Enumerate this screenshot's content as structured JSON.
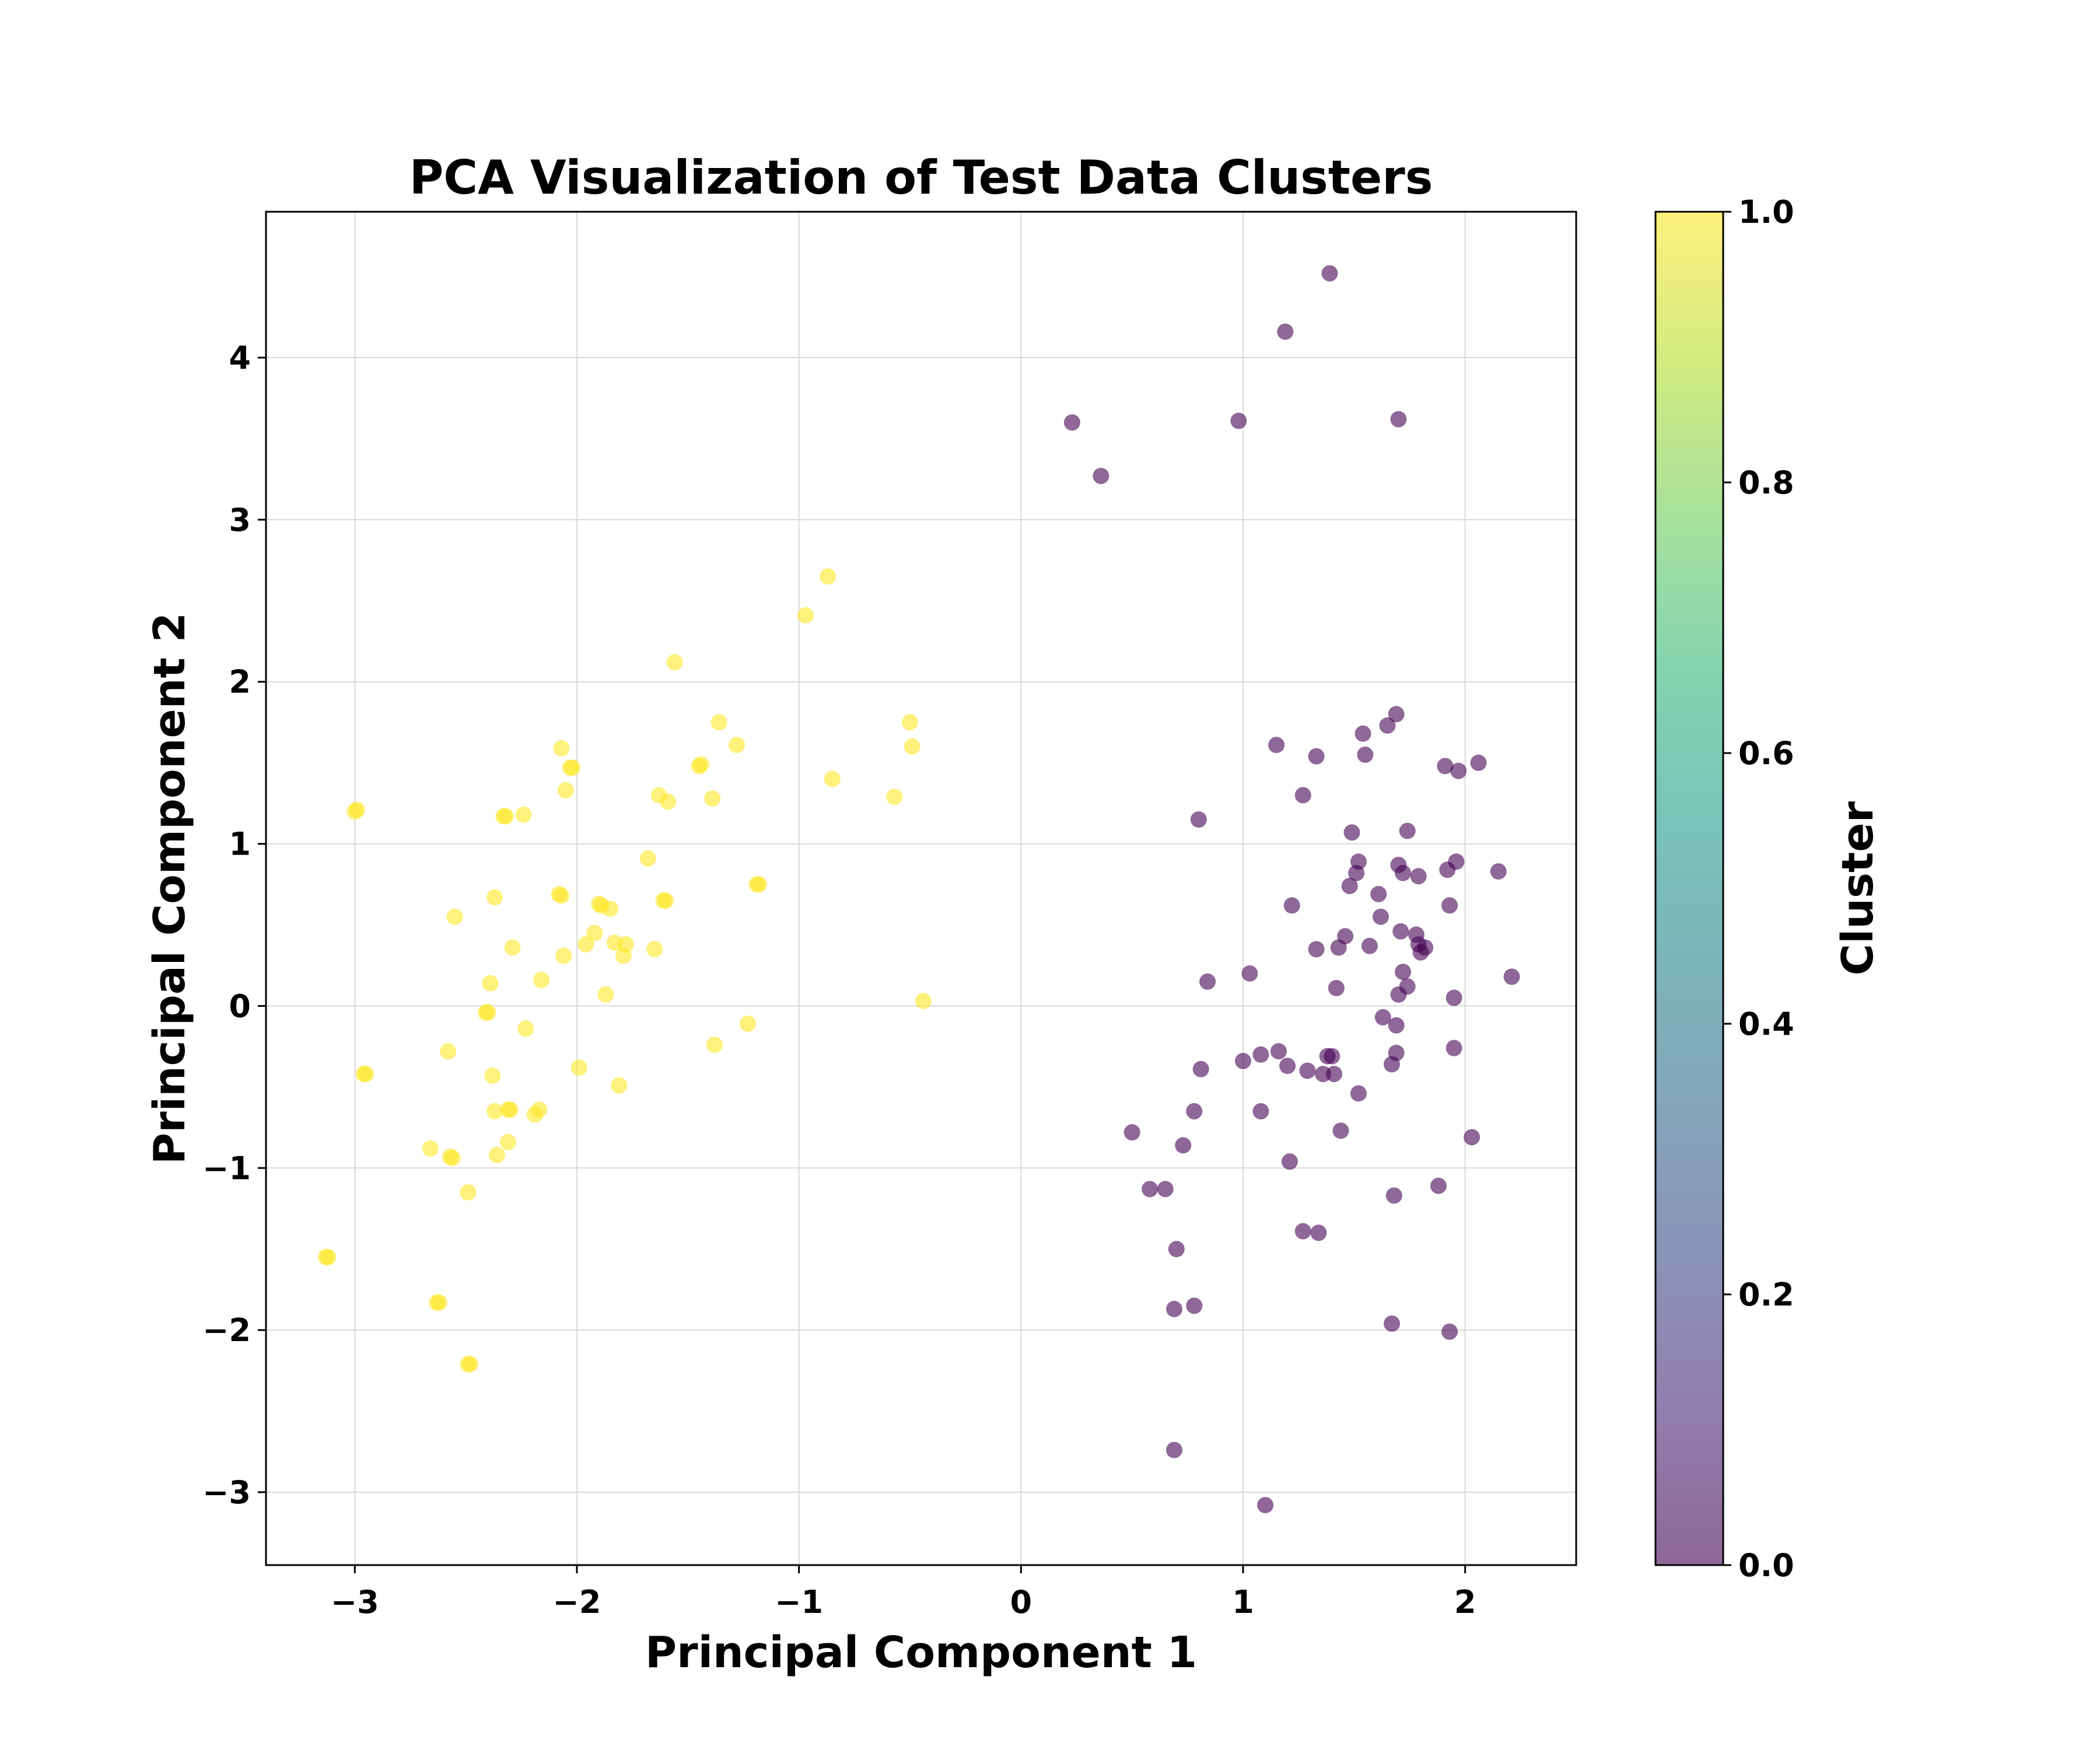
{
  "chart_data": {
    "type": "scatter",
    "title": "PCA Visualization of Test Data Clusters",
    "xlabel": "Principal Component 1",
    "ylabel": "Principal Component 2",
    "xlim": [
      -3.4,
      2.5
    ],
    "ylim": [
      -3.45,
      4.9
    ],
    "xticks": [
      -3,
      -2,
      -1,
      0,
      1,
      2
    ],
    "yticks": [
      -3,
      -2,
      -1,
      0,
      1,
      2,
      3,
      4
    ],
    "grid": true,
    "marker_alpha": 0.6,
    "colormap": "viridis",
    "colorbar": {
      "label": "Cluster",
      "range": [
        0.0,
        1.0
      ],
      "ticks": [
        0.0,
        0.2,
        0.4,
        0.6,
        0.8,
        1.0
      ],
      "tick_labels": [
        "0.0",
        "0.2",
        "0.4",
        "0.6",
        "0.8",
        "1.0"
      ],
      "colors": [
        "#440154",
        "#482878",
        "#3e4989",
        "#31688e",
        "#26828e",
        "#1f9e89",
        "#35b779",
        "#6ece58",
        "#b5de2b",
        "#fde725"
      ]
    },
    "series": [
      {
        "cluster": 1,
        "color": "#fde725",
        "points": [
          [
            -3.0,
            1.2
          ],
          [
            -2.99,
            1.21
          ],
          [
            -2.96,
            -0.42
          ],
          [
            -2.95,
            -0.42
          ],
          [
            -3.13,
            -1.55
          ],
          [
            -3.12,
            -1.55
          ],
          [
            -2.66,
            -0.88
          ],
          [
            -2.58,
            -0.28
          ],
          [
            -2.57,
            -0.93
          ],
          [
            -2.56,
            -0.94
          ],
          [
            -2.55,
            0.55
          ],
          [
            -2.49,
            -1.15
          ],
          [
            -2.63,
            -1.83
          ],
          [
            -2.62,
            -1.83
          ],
          [
            -2.49,
            -2.21
          ],
          [
            -2.48,
            -2.21
          ],
          [
            -2.41,
            -0.04
          ],
          [
            -2.4,
            -0.04
          ],
          [
            -2.39,
            0.14
          ],
          [
            -2.38,
            -0.43
          ],
          [
            -2.37,
            0.67
          ],
          [
            -2.37,
            -0.65
          ],
          [
            -2.36,
            -0.92
          ],
          [
            -2.33,
            1.17
          ],
          [
            -2.32,
            1.17
          ],
          [
            -2.31,
            -0.84
          ],
          [
            -2.31,
            -0.64
          ],
          [
            -2.3,
            -0.64
          ],
          [
            -2.29,
            0.36
          ],
          [
            -2.24,
            1.18
          ],
          [
            -2.23,
            -0.14
          ],
          [
            -2.19,
            -0.67
          ],
          [
            -2.17,
            -0.64
          ],
          [
            -2.16,
            0.16
          ],
          [
            -2.08,
            0.69
          ],
          [
            -2.07,
            0.68
          ],
          [
            -2.07,
            1.59
          ],
          [
            -2.06,
            0.31
          ],
          [
            -2.05,
            1.33
          ],
          [
            -2.03,
            1.47
          ],
          [
            -2.02,
            1.47
          ],
          [
            -1.99,
            -0.38
          ],
          [
            -1.96,
            0.38
          ],
          [
            -1.92,
            0.45
          ],
          [
            -1.9,
            0.63
          ],
          [
            -1.89,
            0.62
          ],
          [
            -1.87,
            0.07
          ],
          [
            -1.85,
            0.6
          ],
          [
            -1.83,
            0.39
          ],
          [
            -1.81,
            -0.49
          ],
          [
            -1.79,
            0.31
          ],
          [
            -1.78,
            0.38
          ],
          [
            -1.68,
            0.91
          ],
          [
            -1.65,
            0.35
          ],
          [
            -1.63,
            1.3
          ],
          [
            -1.61,
            0.65
          ],
          [
            -1.6,
            0.65
          ],
          [
            -1.59,
            1.26
          ],
          [
            -1.56,
            2.12
          ],
          [
            -1.45,
            1.48
          ],
          [
            -1.44,
            1.49
          ],
          [
            -1.39,
            1.28
          ],
          [
            -1.38,
            -0.24
          ],
          [
            -1.36,
            1.75
          ],
          [
            -1.28,
            1.61
          ],
          [
            -1.23,
            -0.11
          ],
          [
            -1.19,
            0.75
          ],
          [
            -1.18,
            0.75
          ],
          [
            -0.97,
            2.41
          ],
          [
            -0.87,
            2.65
          ],
          [
            -0.85,
            1.4
          ],
          [
            -0.57,
            1.29
          ],
          [
            -0.5,
            1.75
          ],
          [
            -0.49,
            1.6
          ],
          [
            -0.44,
            0.03
          ]
        ]
      },
      {
        "cluster": 0,
        "color": "#440154",
        "points": [
          [
            0.23,
            3.6
          ],
          [
            0.36,
            3.27
          ],
          [
            0.98,
            3.61
          ],
          [
            1.19,
            4.16
          ],
          [
            1.39,
            4.52
          ],
          [
            1.7,
            3.62
          ],
          [
            0.5,
            -0.78
          ],
          [
            0.58,
            -1.13
          ],
          [
            0.65,
            -1.13
          ],
          [
            0.69,
            -1.87
          ],
          [
            0.69,
            -2.74
          ],
          [
            0.7,
            -1.5
          ],
          [
            0.73,
            -0.86
          ],
          [
            0.78,
            -0.65
          ],
          [
            0.78,
            -1.85
          ],
          [
            0.8,
            1.15
          ],
          [
            0.81,
            -0.39
          ],
          [
            0.84,
            0.15
          ],
          [
            1.0,
            -0.34
          ],
          [
            1.03,
            0.2
          ],
          [
            1.08,
            -0.3
          ],
          [
            1.08,
            -0.65
          ],
          [
            1.1,
            -3.08
          ],
          [
            1.15,
            1.61
          ],
          [
            1.16,
            -0.28
          ],
          [
            1.2,
            -0.37
          ],
          [
            1.21,
            -0.96
          ],
          [
            1.22,
            0.62
          ],
          [
            1.27,
            1.3
          ],
          [
            1.27,
            -1.39
          ],
          [
            1.29,
            -0.4
          ],
          [
            1.33,
            0.35
          ],
          [
            1.33,
            1.54
          ],
          [
            1.34,
            -1.4
          ],
          [
            1.36,
            -0.42
          ],
          [
            1.38,
            -0.31
          ],
          [
            1.4,
            -0.31
          ],
          [
            1.41,
            -0.42
          ],
          [
            1.42,
            0.11
          ],
          [
            1.43,
            0.36
          ],
          [
            1.44,
            -0.77
          ],
          [
            1.46,
            0.43
          ],
          [
            1.48,
            0.74
          ],
          [
            1.49,
            1.07
          ],
          [
            1.51,
            0.82
          ],
          [
            1.52,
            0.89
          ],
          [
            1.52,
            -0.54
          ],
          [
            1.54,
            1.68
          ],
          [
            1.55,
            1.55
          ],
          [
            1.57,
            0.37
          ],
          [
            1.61,
            0.69
          ],
          [
            1.62,
            0.55
          ],
          [
            1.63,
            -0.07
          ],
          [
            1.65,
            1.73
          ],
          [
            1.67,
            -0.36
          ],
          [
            1.68,
            -1.17
          ],
          [
            1.67,
            -1.96
          ],
          [
            1.69,
            1.8
          ],
          [
            1.69,
            -0.12
          ],
          [
            1.69,
            -0.29
          ],
          [
            1.7,
            0.07
          ],
          [
            1.7,
            0.87
          ],
          [
            1.71,
            0.46
          ],
          [
            1.72,
            0.21
          ],
          [
            1.72,
            0.82
          ],
          [
            1.74,
            1.08
          ],
          [
            1.74,
            0.12
          ],
          [
            1.78,
            0.44
          ],
          [
            1.79,
            0.38
          ],
          [
            1.79,
            0.8
          ],
          [
            1.8,
            0.33
          ],
          [
            1.82,
            0.36
          ],
          [
            1.88,
            -1.11
          ],
          [
            1.91,
            1.48
          ],
          [
            1.92,
            0.84
          ],
          [
            1.93,
            0.62
          ],
          [
            1.93,
            -2.01
          ],
          [
            1.95,
            0.05
          ],
          [
            1.95,
            -0.26
          ],
          [
            1.96,
            0.89
          ],
          [
            1.97,
            1.45
          ],
          [
            2.03,
            -0.81
          ],
          [
            2.06,
            1.5
          ],
          [
            2.15,
            0.83
          ],
          [
            2.21,
            0.18
          ]
        ]
      }
    ]
  }
}
